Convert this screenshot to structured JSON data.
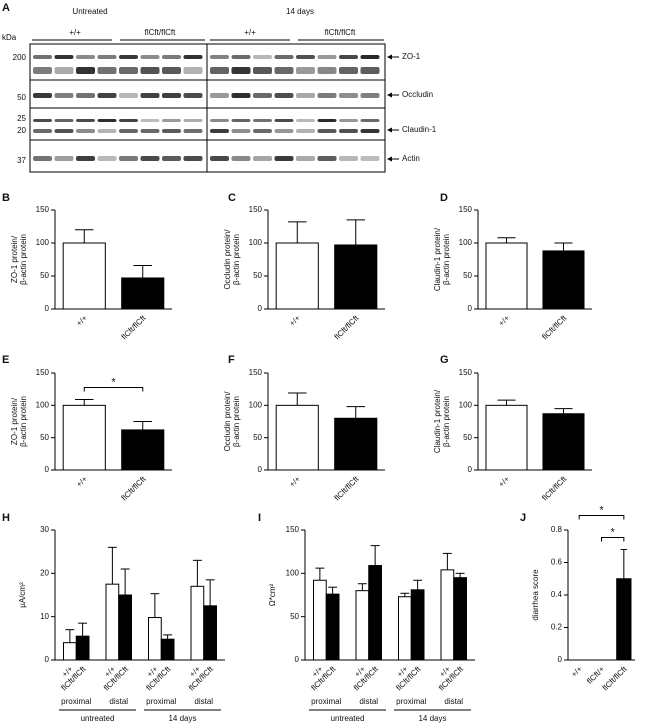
{
  "blot": {
    "panel": "A",
    "unit": "kDa",
    "conditions": [
      "Untreated",
      "14 days"
    ],
    "genotypes": [
      "+/+",
      "flCft/flCft",
      "+/+",
      "flCft/flCft"
    ],
    "markers": [
      200,
      50,
      25,
      20,
      37
    ],
    "proteins": [
      "ZO-1",
      "Occludin",
      "Claudin-1",
      "Actin"
    ]
  },
  "chart_data": [
    {
      "type": "bar",
      "title": "B",
      "ylabel": [
        "ZO-1 protein/",
        "β-actin protein"
      ],
      "categories": [
        "+/+",
        "flCft/flCft"
      ],
      "values": [
        100,
        47
      ],
      "errors": [
        20,
        19
      ],
      "colors": [
        "#ffffff",
        "#000000"
      ],
      "ylim": [
        0,
        150
      ],
      "yticks": [
        0,
        50,
        100,
        150
      ]
    },
    {
      "type": "bar",
      "title": "C",
      "ylabel": [
        "Occludin protein/",
        "β-actin protein"
      ],
      "categories": [
        "+/+",
        "flCft/flCft"
      ],
      "values": [
        100,
        97
      ],
      "errors": [
        32,
        38
      ],
      "colors": [
        "#ffffff",
        "#000000"
      ],
      "ylim": [
        0,
        150
      ],
      "yticks": [
        0,
        50,
        100,
        150
      ]
    },
    {
      "type": "bar",
      "title": "D",
      "ylabel": [
        "Claudin-1 protein/",
        "β-actin protein"
      ],
      "categories": [
        "+/+",
        "flCft/flCft"
      ],
      "values": [
        100,
        88
      ],
      "errors": [
        8,
        12
      ],
      "colors": [
        "#ffffff",
        "#000000"
      ],
      "ylim": [
        0,
        150
      ],
      "yticks": [
        0,
        50,
        100,
        150
      ]
    },
    {
      "type": "bar",
      "title": "E",
      "ylabel": [
        "ZO-1 protein/",
        "β-actin protein"
      ],
      "categories": [
        "+/+",
        "flCft/flCft"
      ],
      "values": [
        100,
        62
      ],
      "errors": [
        9,
        13
      ],
      "colors": [
        "#ffffff",
        "#000000"
      ],
      "ylim": [
        0,
        150
      ],
      "yticks": [
        0,
        50,
        100,
        150
      ],
      "significance": [
        {
          "label": "*",
          "from": "+/+",
          "to": "flCft/flCft"
        }
      ]
    },
    {
      "type": "bar",
      "title": "F",
      "ylabel": [
        "Occludin protein/",
        "β-actin protein"
      ],
      "categories": [
        "+/+",
        "flCft/flCft"
      ],
      "values": [
        100,
        80
      ],
      "errors": [
        19,
        18
      ],
      "colors": [
        "#ffffff",
        "#000000"
      ],
      "ylim": [
        0,
        150
      ],
      "yticks": [
        0,
        50,
        100,
        150
      ]
    },
    {
      "type": "bar",
      "title": "G",
      "ylabel": [
        "Claudin-1 protein/",
        "β-actin protein"
      ],
      "categories": [
        "+/+",
        "flCft/flCft"
      ],
      "values": [
        100,
        87
      ],
      "errors": [
        8,
        8
      ],
      "colors": [
        "#ffffff",
        "#000000"
      ],
      "ylim": [
        0,
        150
      ],
      "yticks": [
        0,
        50,
        100,
        150
      ]
    },
    {
      "type": "bar",
      "title": "H",
      "ylabel": [
        "µA/cm²"
      ],
      "categories": [
        "proximal",
        "distal",
        "proximal",
        "distal"
      ],
      "groups": [
        "untreated",
        "14 days"
      ],
      "series": [
        {
          "name": "+/+",
          "color": "#ffffff",
          "values": [
            4,
            17.5,
            9.8,
            17
          ],
          "errors": [
            3,
            8.5,
            5.5,
            6
          ]
        },
        {
          "name": "flCft/flCft",
          "color": "#000000",
          "values": [
            5.5,
            15,
            4.8,
            12.5
          ],
          "errors": [
            3,
            6,
            1,
            6
          ]
        }
      ],
      "ylim": [
        0,
        30
      ],
      "yticks": [
        0,
        10,
        20,
        30
      ]
    },
    {
      "type": "bar",
      "title": "I",
      "ylabel": [
        "Ω*cm²"
      ],
      "categories": [
        "proximal",
        "distal",
        "proximal",
        "distal"
      ],
      "groups": [
        "untreated",
        "14 days"
      ],
      "series": [
        {
          "name": "+/+",
          "color": "#ffffff",
          "values": [
            92,
            80,
            73,
            104
          ],
          "errors": [
            14,
            8,
            4,
            19
          ]
        },
        {
          "name": "flCft/flCft",
          "color": "#000000",
          "values": [
            76,
            109,
            81,
            95
          ],
          "errors": [
            8,
            23,
            11,
            5
          ]
        }
      ],
      "ylim": [
        0,
        150
      ],
      "yticks": [
        0,
        50,
        100,
        150
      ]
    },
    {
      "type": "bar",
      "title": "J",
      "ylabel": [
        "diarrhea score"
      ],
      "categories": [
        "+/+",
        "flCft/+",
        "flCft/flCft"
      ],
      "values": [
        0,
        0,
        0.5
      ],
      "errors": [
        0,
        0,
        0.18
      ],
      "colors": [
        "#ffffff",
        "#ffffff",
        "#000000"
      ],
      "ylim": [
        0,
        0.8
      ],
      "yticks": [
        0,
        0.2,
        0.4,
        0.6,
        0.8
      ],
      "significance": [
        {
          "label": "*",
          "from": "flCft/+",
          "to": "flCft/flCft"
        },
        {
          "label": "*",
          "from": "+/+",
          "to": "flCft/flCft"
        }
      ]
    }
  ]
}
